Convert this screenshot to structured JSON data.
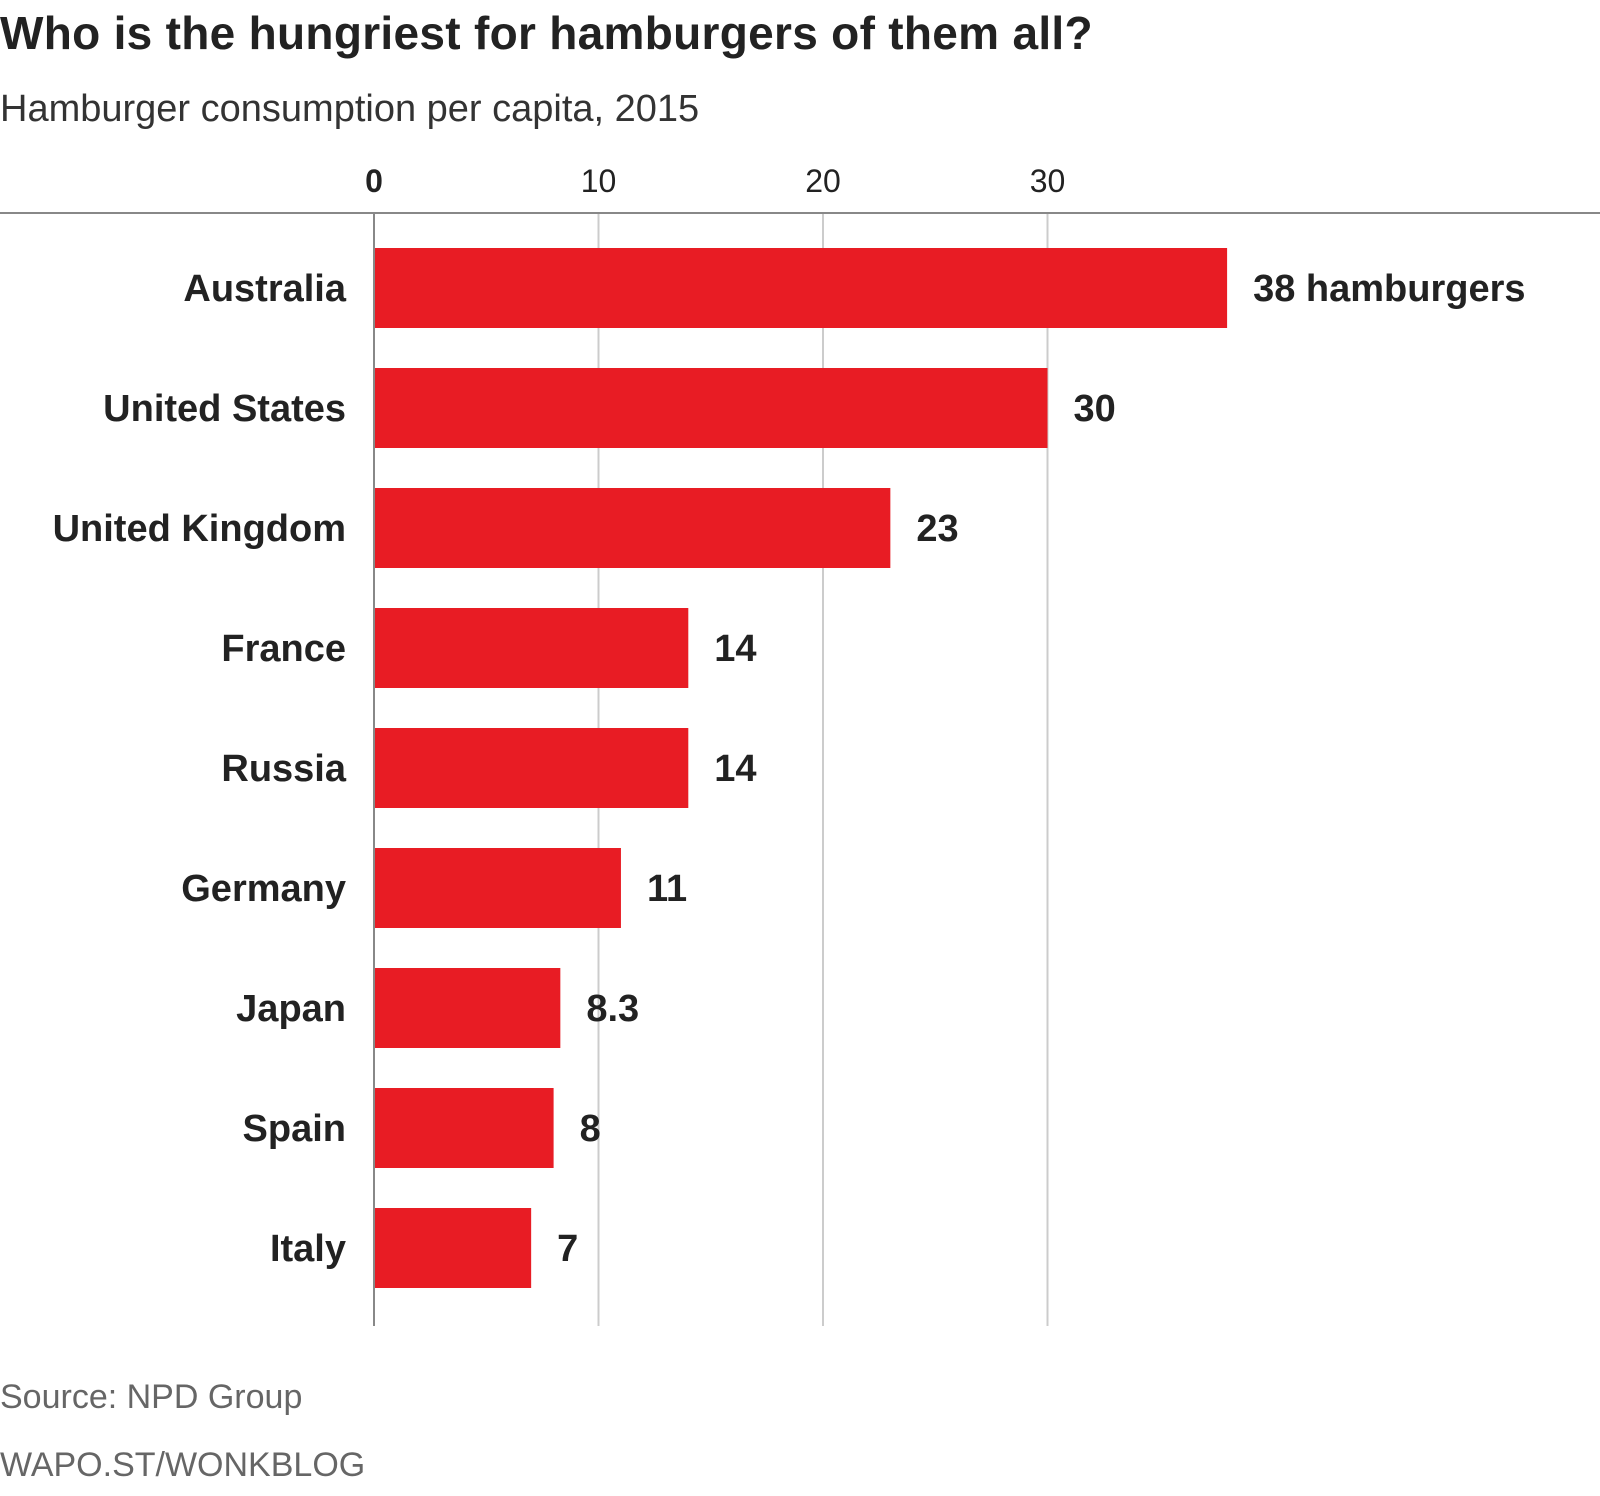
{
  "title": "Who is the hungriest for hamburgers of them all?",
  "subtitle": "Hamburger consumption per capita, 2015",
  "footer": {
    "source": "Source: NPD Group",
    "credit": "WAPO.ST/WONKBLOG"
  },
  "colors": {
    "bar": "#e81c24",
    "text": "#222222",
    "grid": "#cccccc",
    "axis": "#888888",
    "muted": "#666666"
  },
  "chart_data": {
    "type": "bar",
    "orientation": "horizontal",
    "categories": [
      "Australia",
      "United States",
      "United Kingdom",
      "France",
      "Russia",
      "Germany",
      "Japan",
      "Spain",
      "Italy"
    ],
    "values": [
      38,
      30,
      23,
      14,
      14,
      11,
      8.3,
      8,
      7
    ],
    "value_labels": [
      "38 hamburgers",
      "30",
      "23",
      "14",
      "14",
      "11",
      "8.3",
      "8",
      "7"
    ],
    "x_ticks": [
      0,
      10,
      20,
      30
    ],
    "x_tick_labels": [
      "0",
      "10",
      "20",
      "30"
    ],
    "xlim": [
      0,
      40
    ],
    "grid": true,
    "legend": "none"
  }
}
